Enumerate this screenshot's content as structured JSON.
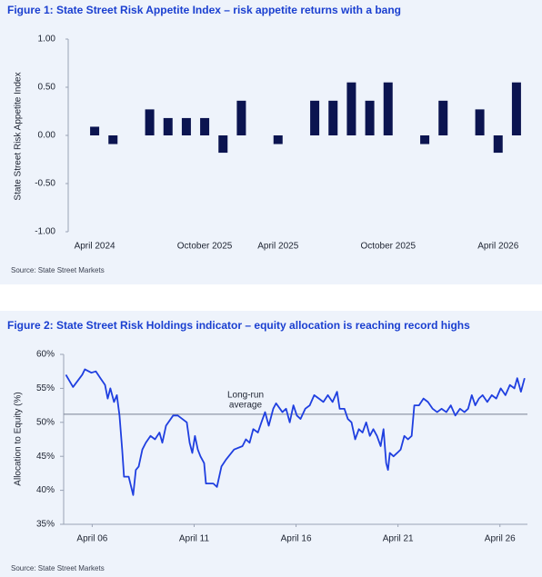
{
  "chart_data": [
    {
      "type": "bar",
      "title": "Figure 1: State Street Risk Appetite Index – risk appetite returns with a bang",
      "ylabel": "State Street Risk Appetite Index",
      "source": "Source: State Street Markets",
      "categories": [
        "April 2024",
        null,
        null,
        null,
        null,
        null,
        "October 2025",
        null,
        null,
        null,
        "April 2025",
        null,
        null,
        null,
        null,
        null,
        "October 2025",
        null,
        null,
        null,
        null,
        null,
        "April 2026",
        null
      ],
      "values": [
        0.09,
        -0.09,
        null,
        0.27,
        0.18,
        0.18,
        0.18,
        -0.18,
        0.36,
        null,
        -0.09,
        null,
        0.36,
        0.36,
        0.55,
        0.36,
        0.55,
        null,
        -0.09,
        0.36,
        null,
        0.27,
        -0.18,
        0.55
      ],
      "color": "#0b1450",
      "ylim": [
        -1,
        1
      ],
      "yticks": [
        {
          "value": 1,
          "label": "1.00"
        },
        {
          "value": 0.5,
          "label": "0.50"
        },
        {
          "value": 0,
          "label": "0.00"
        },
        {
          "value": -0.5,
          "label": "-0.50"
        },
        {
          "value": -1,
          "label": "-1.00"
        }
      ],
      "grid": false
    },
    {
      "type": "line",
      "title": "Figure 2: State Street Risk Holdings indicator – equity allocation is reaching record highs",
      "ylabel": "Allocation to Equity (%)",
      "source": "Source: State Street Markets",
      "x": [
        4.96,
        5.31,
        5.76,
        5.89,
        6.21,
        6.43,
        6.65,
        6.88,
        7.01,
        7.14,
        7.32,
        7.46,
        7.59,
        7.72,
        7.81,
        8.04,
        8.26,
        8.39,
        8.53,
        8.71,
        8.88,
        9.11,
        9.33,
        9.55,
        9.69,
        9.87,
        10.22,
        10.45,
        10.67,
        10.89,
        11.03,
        11.16,
        11.29,
        11.43,
        11.56,
        11.74,
        11.83,
        12.19,
        12.37,
        12.59,
        12.81,
        13.21,
        13.62,
        13.79,
        13.97,
        14.15,
        14.38,
        14.55,
        14.73,
        14.91,
        15.13,
        15.27,
        15.58,
        15.76,
        15.94,
        16.12,
        16.29,
        16.47,
        16.7,
        16.92,
        17.14,
        17.37,
        17.59,
        17.81,
        18.04,
        18.26,
        18.39,
        18.62,
        18.79,
        18.97,
        19.15,
        19.33,
        19.51,
        19.69,
        19.87,
        20.04,
        20.22,
        20.4,
        20.54,
        20.67,
        20.76,
        20.85,
        21.03,
        21.21,
        21.38,
        21.56,
        21.74,
        21.92,
        22.05,
        22.28,
        22.5,
        22.72,
        22.95,
        23.17,
        23.39,
        23.62,
        23.84,
        24.06,
        24.29,
        24.51,
        24.69,
        24.87,
        25.04,
        25.22,
        25.4,
        25.63,
        25.85,
        26.07,
        26.29,
        26.52,
        26.74,
        26.96,
        27.1,
        27.28,
        27.46
      ],
      "values": [
        57,
        55.2,
        57,
        57.8,
        57.3,
        57.5,
        56.5,
        55.5,
        53.5,
        55,
        53,
        54,
        51,
        46,
        42,
        42,
        39.3,
        43,
        43.5,
        46,
        47,
        48,
        47.5,
        48.5,
        47,
        49.5,
        51,
        51,
        50.5,
        50,
        47,
        45.5,
        48,
        46,
        45,
        44,
        41,
        41,
        40.5,
        43.5,
        44.5,
        46,
        46.5,
        47.5,
        47,
        49,
        48.5,
        50,
        51.5,
        49.5,
        52,
        52.8,
        51.5,
        52,
        50,
        52.5,
        51,
        50.5,
        52,
        52.5,
        54,
        53.5,
        53,
        54,
        53,
        54.5,
        52,
        52,
        50.5,
        50,
        47.5,
        49,
        48.5,
        50,
        48,
        49,
        48,
        46.5,
        49,
        44,
        43,
        45.5,
        45,
        45.5,
        46,
        48,
        47.5,
        48,
        52.5,
        52.5,
        53.5,
        53,
        52,
        51.5,
        52,
        51.5,
        52.5,
        51,
        52,
        51.5,
        52,
        54,
        52.5,
        53.5,
        54,
        53,
        54,
        53.5,
        55,
        54,
        55.5,
        55,
        56.5,
        54.5,
        56.5
      ],
      "color": "#1f3fe0",
      "xlim": [
        4.85,
        27.6
      ],
      "xticks": [
        {
          "value": 6.25,
          "label": "April 06"
        },
        {
          "value": 11.25,
          "label": "April 11"
        },
        {
          "value": 16.25,
          "label": "April 16"
        },
        {
          "value": 21.25,
          "label": "April 21"
        },
        {
          "value": 26.25,
          "label": "April 26"
        }
      ],
      "ylim": [
        35,
        60
      ],
      "yticks": [
        {
          "value": 60,
          "label": "60%"
        },
        {
          "value": 55,
          "label": "55%"
        },
        {
          "value": 50,
          "label": "50%"
        },
        {
          "value": 45,
          "label": "45%"
        },
        {
          "value": 40,
          "label": "40%"
        },
        {
          "value": 35,
          "label": "35%"
        }
      ],
      "average_line": 51.2,
      "annotation": [
        "Long-run",
        "average"
      ],
      "grid": false
    }
  ]
}
